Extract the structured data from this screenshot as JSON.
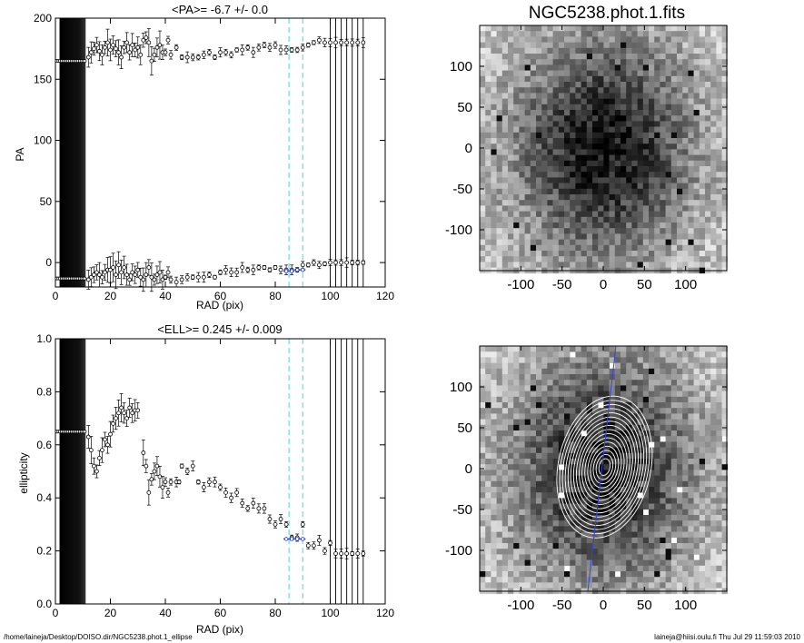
{
  "image_title": "NGC5238.phot.1.fits",
  "footer": {
    "left": "/home/laineja/Desktop/DOISO.dir/NGC5238.phot.1_ellipse",
    "right": "laineja@hiisi.oulu.fi  Thu Jul 29 11:59:03 2010"
  },
  "chart_data": [
    {
      "type": "scatter",
      "title": "<PA>=  -6.7 +/-   0.0",
      "xlabel": "RAD (pix)",
      "ylabel": "PA",
      "xlim": [
        0,
        120
      ],
      "ylim": [
        -20,
        200
      ],
      "xticks": [
        0,
        20,
        40,
        60,
        80,
        100,
        120
      ],
      "yticks": [
        0,
        50,
        100,
        150,
        200
      ],
      "series": [
        {
          "x": [
            12,
            13,
            14,
            15,
            16,
            17,
            18,
            19,
            20,
            21,
            22,
            23,
            24,
            25,
            26,
            27,
            28,
            29,
            30,
            31,
            32,
            33,
            34,
            35,
            36,
            37,
            38,
            39,
            40,
            41,
            42,
            44,
            46,
            48,
            50,
            52,
            54,
            56,
            58,
            60,
            62,
            64,
            66,
            68,
            70,
            72,
            74,
            76,
            78,
            80,
            82,
            84,
            86,
            88,
            90,
            92,
            94,
            96,
            98,
            100,
            102,
            104,
            106,
            108,
            110,
            112
          ],
          "y": [
            168,
            172,
            175,
            178,
            173,
            170,
            176,
            180,
            174,
            178,
            175,
            172,
            168,
            176,
            180,
            172,
            178,
            174,
            176,
            170,
            182,
            184,
            180,
            165,
            170,
            176,
            178,
            172,
            172,
            182,
            170,
            176,
            168,
            168,
            168,
            168,
            170,
            172,
            168,
            172,
            172,
            170,
            174,
            174,
            176,
            172,
            176,
            178,
            176,
            178,
            174,
            174,
            174,
            174,
            176,
            178,
            180,
            182,
            180,
            180,
            180,
            180,
            180,
            180,
            180,
            180
          ]
        },
        {
          "x": [
            12,
            13,
            14,
            15,
            16,
            17,
            18,
            19,
            20,
            21,
            22,
            23,
            24,
            25,
            26,
            27,
            28,
            29,
            30,
            31,
            32,
            33,
            34,
            35,
            36,
            37,
            38,
            39,
            40,
            41,
            42,
            44,
            46,
            48,
            50,
            52,
            54,
            56,
            58,
            60,
            62,
            64,
            66,
            68,
            70,
            72,
            74,
            76,
            78,
            80,
            82,
            84,
            86,
            88,
            90,
            92,
            94,
            96,
            98,
            100,
            102,
            104,
            106,
            108,
            110,
            112
          ],
          "y": [
            -14,
            -12,
            -10,
            -8,
            -10,
            -12,
            -8,
            -6,
            -6,
            -4,
            -10,
            -2,
            -8,
            -4,
            -10,
            -14,
            -8,
            -10,
            -6,
            -12,
            -14,
            -10,
            -4,
            -12,
            -14,
            -10,
            -8,
            -14,
            -12,
            -8,
            -14,
            -16,
            -14,
            -12,
            -12,
            -12,
            -12,
            -10,
            -12,
            -8,
            -6,
            -8,
            -8,
            -4,
            -6,
            -6,
            -4,
            -4,
            -6,
            -4,
            -6,
            -6,
            -6,
            -6,
            -2,
            -2,
            0,
            -2,
            -1,
            0,
            0,
            0,
            0,
            0,
            0,
            0
          ]
        },
        {
          "x": [
            84,
            86,
            88,
            90
          ],
          "y": [
            -7,
            -7,
            -6,
            -6
          ]
        }
      ]
    },
    {
      "type": "scatter",
      "title": "<ELL>= 0.245 +/-  0.009",
      "xlabel": "RAD (pix)",
      "ylabel": "ellipticity",
      "xlim": [
        0,
        120
      ],
      "ylim": [
        0.0,
        1.0
      ],
      "xticks": [
        0,
        20,
        40,
        60,
        80,
        100,
        120
      ],
      "yticks": [
        0.0,
        0.2,
        0.4,
        0.6,
        0.8,
        1.0
      ],
      "series": [
        {
          "x": [
            12,
            13,
            14,
            15,
            16,
            17,
            18,
            19,
            20,
            21,
            22,
            23,
            24,
            25,
            26,
            27,
            28,
            29,
            30,
            32,
            33,
            34,
            35,
            36,
            37,
            38,
            39,
            40,
            41,
            42,
            44,
            45,
            46,
            48,
            50,
            52,
            54,
            56,
            58,
            60,
            62,
            64,
            66,
            68,
            70,
            72,
            74,
            76,
            78,
            80,
            82,
            84,
            86,
            88,
            90,
            92,
            94,
            96,
            98,
            100,
            102,
            104,
            106,
            108,
            110,
            112
          ],
          "y": [
            0.63,
            0.58,
            0.52,
            0.5,
            0.55,
            0.58,
            0.62,
            0.6,
            0.64,
            0.68,
            0.7,
            0.72,
            0.74,
            0.72,
            0.7,
            0.74,
            0.72,
            0.73,
            0.73,
            0.57,
            0.52,
            0.42,
            0.47,
            0.5,
            0.52,
            0.48,
            0.44,
            0.46,
            0.42,
            0.46,
            0.46,
            0.46,
            0.52,
            0.5,
            0.52,
            0.46,
            0.44,
            0.46,
            0.46,
            0.44,
            0.42,
            0.4,
            0.42,
            0.38,
            0.36,
            0.38,
            0.36,
            0.36,
            0.32,
            0.3,
            0.32,
            0.3,
            0.25,
            0.25,
            0.3,
            0.22,
            0.22,
            0.24,
            0.2,
            0.23,
            0.19,
            0.19,
            0.19,
            0.19,
            0.19,
            0.19
          ]
        },
        {
          "x": [
            84,
            86,
            88,
            90
          ],
          "y": [
            0.245,
            0.245,
            0.245,
            0.245
          ]
        }
      ]
    }
  ],
  "image_axes": {
    "xticks": [
      -100,
      -50,
      0,
      50,
      100
    ],
    "yticks": [
      100,
      50,
      0,
      -50,
      -100
    ]
  }
}
